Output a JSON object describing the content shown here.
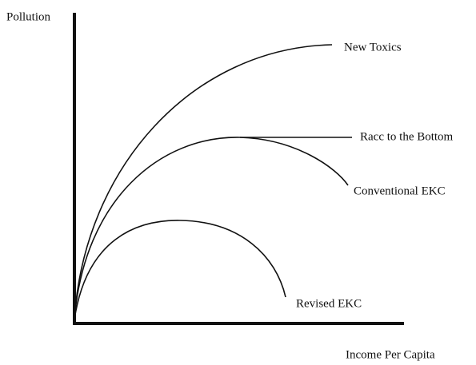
{
  "axes": {
    "y_label": "Pollution",
    "x_label": "Income Per Capita"
  },
  "curves": [
    {
      "label": "New Toxics"
    },
    {
      "label": "Racc to the Bottom"
    },
    {
      "label": "Conventional EKC"
    },
    {
      "label": "Revised EKC"
    }
  ]
}
